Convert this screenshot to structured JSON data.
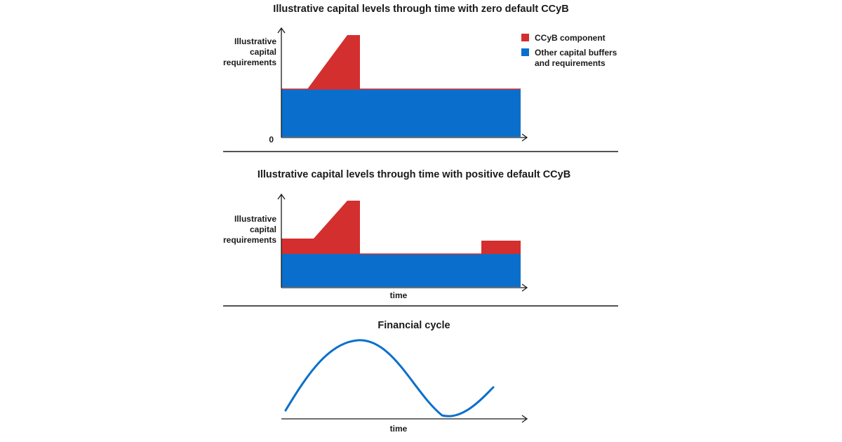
{
  "panel1": {
    "title": "Illustrative capital levels through time with zero default CCyB",
    "ylabel": [
      "Illustrative",
      "capital",
      "requirements"
    ],
    "zero_label": "0"
  },
  "panel2": {
    "title": "Illustrative capital levels through time with positive default CCyB",
    "ylabel": [
      "Illustrative",
      "capital",
      "requirements"
    ],
    "xlabel": "time"
  },
  "panel3": {
    "title": "Financial cycle",
    "xlabel": "time"
  },
  "legend": {
    "ccyb": "CCyB component",
    "other_line1": "Other capital buffers",
    "other_line2": "and requirements"
  },
  "colors": {
    "ccyb": "#d32f2f",
    "other": "#0a6fcc",
    "cycle_line": "#0a6fcc",
    "axis": "#1a1a1a"
  }
}
